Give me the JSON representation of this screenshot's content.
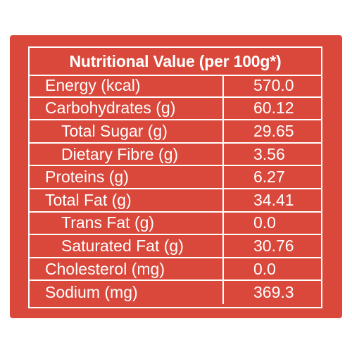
{
  "table": {
    "title": "Nutritional Value (per 100g*)",
    "rows": [
      {
        "label": "Energy (kcal)",
        "value": "570.0",
        "indent": false
      },
      {
        "label": "Carbohydrates (g)",
        "value": "60.12",
        "indent": false
      },
      {
        "label": "Total Sugar (g)",
        "value": "29.65",
        "indent": true
      },
      {
        "label": "Dietary Fibre (g)",
        "value": "3.56",
        "indent": true
      },
      {
        "label": "Proteins (g)",
        "value": "6.27",
        "indent": false
      },
      {
        "label": "Total Fat (g)",
        "value": "34.41",
        "indent": false
      },
      {
        "label": "Trans Fat (g)",
        "value": "0.0",
        "indent": true
      },
      {
        "label": "Saturated Fat (g)",
        "value": "30.76",
        "indent": true
      },
      {
        "label": "Cholesterol (mg)",
        "value": "0.0",
        "indent": false
      },
      {
        "label": "Sodium (mg)",
        "value": "369.3",
        "indent": false
      }
    ]
  },
  "colors": {
    "background": "#d9483b",
    "text": "#ffffff",
    "border": "#ffffff"
  }
}
